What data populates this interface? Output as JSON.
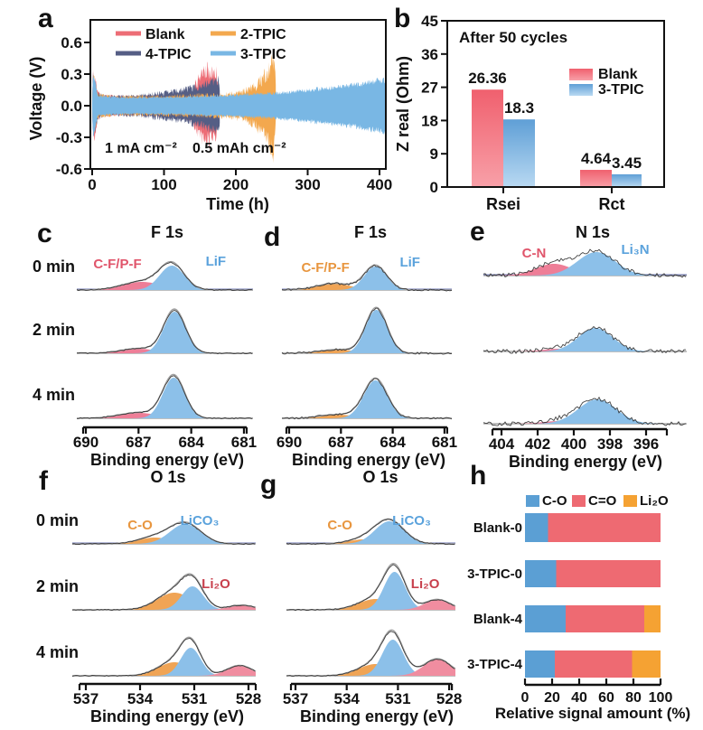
{
  "colors": {
    "blank_red": "#ed6d76",
    "tpic2_orange": "#f3a84e",
    "tpic4_navy": "#555e85",
    "tpic3_blue": "#79b7e4",
    "bar_red_top": "#f0606e",
    "bar_red_bot": "#f8a0a8",
    "bar_blue_top": "#5f9fd6",
    "bar_blue_bot": "#b9d9f2",
    "xps_blue": "#8cc0e9",
    "xps_red": "#ee7e97",
    "xps_orange": "#f0a455",
    "xps_pink": "#f08da0",
    "envelope_gray": "#a2a2a2",
    "baseline_gray": "#9b9b9b",
    "fit_navy": "#5560a8",
    "noise_black": "#2e2e2e",
    "h_blue": "#5b9fd4",
    "h_red": "#ee6a72",
    "h_orange": "#f5a233",
    "label_red": "#e0556b",
    "label_blue": "#5aa2dc",
    "label_orange": "#e8963f",
    "label_dark_red": "#c8404d",
    "text": "#111111"
  },
  "chart_data": [
    {
      "panel": "a",
      "type": "line",
      "xlabel": "Time (h)",
      "ylabel": "Voltage (V)",
      "xticks": [
        "0",
        "100",
        "200",
        "300",
        "400"
      ],
      "yticks": [
        "0.6",
        "0.3",
        "0.0",
        "-0.3",
        "-0.6"
      ],
      "xlim": [
        0,
        410
      ],
      "ylim": [
        -0.6,
        0.8
      ],
      "annotations": [
        "1 mA cm⁻²",
        "0.5 mAh cm⁻²"
      ],
      "legend": [
        {
          "label": "Blank",
          "color_key": "blank_red"
        },
        {
          "label": "2-TPIC",
          "color_key": "tpic2_orange"
        },
        {
          "label": "4-TPIC",
          "color_key": "tpic4_navy"
        },
        {
          "label": "3-TPIC",
          "color_key": "tpic3_blue"
        }
      ],
      "series": [
        {
          "name": "Blank",
          "color_key": "blank_red",
          "jitter": 0.55,
          "envelope": [
            [
              0,
              0.02
            ],
            [
              1,
              0.3
            ],
            [
              4,
              0.26
            ],
            [
              8,
              0.12
            ],
            [
              15,
              0.085
            ],
            [
              60,
              0.08
            ],
            [
              100,
              0.09
            ],
            [
              125,
              0.1
            ],
            [
              138,
              0.13
            ],
            [
              146,
              0.22
            ],
            [
              152,
              0.3
            ],
            [
              158,
              0.34
            ],
            [
              164,
              0.33
            ],
            [
              169,
              0.27
            ],
            [
              173,
              0.32
            ],
            [
              175,
              0.18
            ]
          ]
        },
        {
          "name": "2-TPIC",
          "color_key": "tpic2_orange",
          "jitter": 0.55,
          "envelope": [
            [
              0,
              0.02
            ],
            [
              1,
              0.26
            ],
            [
              4,
              0.2
            ],
            [
              8,
              0.1
            ],
            [
              30,
              0.08
            ],
            [
              100,
              0.085
            ],
            [
              150,
              0.095
            ],
            [
              185,
              0.1
            ],
            [
              205,
              0.12
            ],
            [
              218,
              0.15
            ],
            [
              228,
              0.19
            ],
            [
              238,
              0.26
            ],
            [
              245,
              0.32
            ],
            [
              250,
              0.4
            ],
            [
              253,
              0.44
            ],
            [
              255,
              0.28
            ],
            [
              256,
              0.1
            ]
          ]
        },
        {
          "name": "4-TPIC",
          "color_key": "tpic4_navy",
          "jitter": 0.45,
          "envelope": [
            [
              0,
              0.02
            ],
            [
              1,
              0.28
            ],
            [
              4,
              0.22
            ],
            [
              8,
              0.11
            ],
            [
              20,
              0.085
            ],
            [
              60,
              0.09
            ],
            [
              100,
              0.12
            ],
            [
              130,
              0.15
            ],
            [
              150,
              0.18
            ],
            [
              165,
              0.22
            ],
            [
              172,
              0.24
            ],
            [
              177,
              0.23
            ],
            [
              178,
              0.08
            ]
          ]
        },
        {
          "name": "3-TPIC",
          "color_key": "tpic3_blue",
          "jitter": 0.28,
          "envelope": [
            [
              0,
              0.02
            ],
            [
              1,
              0.3
            ],
            [
              4,
              0.22
            ],
            [
              8,
              0.09
            ],
            [
              50,
              0.075
            ],
            [
              120,
              0.08
            ],
            [
              200,
              0.1
            ],
            [
              260,
              0.12
            ],
            [
              320,
              0.16
            ],
            [
              370,
              0.2
            ],
            [
              410,
              0.25
            ]
          ]
        }
      ]
    },
    {
      "panel": "b",
      "type": "bar",
      "title": "After 50 cycles",
      "ylabel": "Z real (Ohm)",
      "ylim": [
        0,
        45
      ],
      "yticks": [
        0,
        9,
        18,
        27,
        36,
        45
      ],
      "categories": [
        "Rsei",
        "Rct"
      ],
      "series": [
        {
          "name": "Blank",
          "color_key": "blank_red",
          "values": [
            26.36,
            4.64
          ]
        },
        {
          "name": "3-TPIC",
          "color_key": "tpic3_blue",
          "values": [
            18.3,
            3.45
          ]
        }
      ],
      "value_labels": [
        [
          "26.36",
          "4.64"
        ],
        [
          "18.3",
          "3.45"
        ]
      ]
    },
    {
      "panel": "c",
      "type": "area",
      "title": "F 1s",
      "xlabel": "Binding energy (eV)",
      "xticks": [
        690,
        687,
        684,
        681
      ],
      "row_labels": [
        "0 min",
        "2 min",
        "4 min"
      ],
      "rows": [
        {
          "peaks": [
            {
              "name": "C-F/P-F",
              "center": 686.8,
              "sigma": 1.1,
              "height": 9,
              "color_key": "xps_red"
            },
            {
              "name": "LiF",
              "center": 685.1,
              "sigma": 0.7,
              "height": 27,
              "color_key": "xps_blue"
            }
          ],
          "annotations": [
            {
              "text": "C-F/P-F",
              "color_key": "label_red",
              "ev": 688.2,
              "dy": -24
            },
            {
              "text": "LiF",
              "color_key": "label_blue",
              "ev": 682.6,
              "dy": -27
            }
          ]
        },
        {
          "peaks": [
            {
              "name": "C-F/P-F",
              "center": 687.0,
              "sigma": 1.0,
              "height": 5,
              "color_key": "xps_red"
            },
            {
              "name": "LiF",
              "center": 684.95,
              "sigma": 0.62,
              "height": 46,
              "color_key": "xps_blue"
            }
          ]
        },
        {
          "peaks": [
            {
              "name": "C-F/P-F",
              "center": 687.0,
              "sigma": 1.1,
              "height": 6,
              "color_key": "xps_red"
            },
            {
              "name": "LiF",
              "center": 685.0,
              "sigma": 0.62,
              "height": 45,
              "color_key": "xps_blue"
            }
          ]
        }
      ]
    },
    {
      "panel": "d",
      "type": "area",
      "title": "F 1s",
      "xlabel": "Binding energy (eV)",
      "xticks": [
        690,
        687,
        684,
        681
      ],
      "rows": [
        {
          "peaks": [
            {
              "name": "C-F/P-F",
              "center": 687.4,
              "sigma": 1.0,
              "height": 7,
              "color_key": "xps_orange"
            },
            {
              "name": "LiF",
              "center": 685.0,
              "sigma": 0.65,
              "height": 26,
              "color_key": "xps_blue"
            }
          ],
          "annotations": [
            {
              "text": "C-F/P-F",
              "color_key": "label_orange",
              "ev": 687.9,
              "dy": -20
            },
            {
              "text": "LiF",
              "color_key": "label_blue",
              "ev": 683.0,
              "dy": -26
            }
          ]
        },
        {
          "peaks": [
            {
              "name": "C-F/P-F",
              "center": 687.2,
              "sigma": 1.0,
              "height": 4,
              "color_key": "xps_orange"
            },
            {
              "name": "LiF",
              "center": 684.95,
              "sigma": 0.62,
              "height": 48,
              "color_key": "xps_blue"
            }
          ]
        },
        {
          "peaks": [
            {
              "name": "C-F/P-F",
              "center": 687.2,
              "sigma": 1.0,
              "height": 4,
              "color_key": "xps_orange"
            },
            {
              "name": "LiF",
              "center": 685.0,
              "sigma": 0.68,
              "height": 42,
              "color_key": "xps_blue"
            }
          ]
        }
      ]
    },
    {
      "panel": "e",
      "type": "area",
      "title": "N 1s",
      "xlabel": "Binding energy (eV)",
      "xticks": [
        404,
        402,
        400,
        398,
        396
      ],
      "rows": [
        {
          "peaks": [
            {
              "name": "C-N",
              "center": 401.1,
              "sigma": 1.0,
              "height": 13,
              "color_key": "xps_red"
            },
            {
              "name": "Li3N",
              "center": 398.75,
              "sigma": 1.05,
              "height": 26,
              "color_key": "xps_blue"
            }
          ],
          "annotations": [
            {
              "text": "C-N",
              "color_key": "label_red",
              "ev": 402.2,
              "dy": -20
            },
            {
              "text": "Li₃N",
              "color_key": "label_blue",
              "ev": 396.6,
              "dy": -24
            }
          ]
        },
        {
          "peaks": [
            {
              "name": "C-N",
              "center": 400.8,
              "sigma": 0.9,
              "height": 3,
              "color_key": "xps_red"
            },
            {
              "name": "Li3N",
              "center": 398.8,
              "sigma": 0.95,
              "height": 26,
              "color_key": "xps_blue"
            }
          ]
        },
        {
          "peaks": [
            {
              "name": "C-N",
              "center": 400.8,
              "sigma": 0.9,
              "height": 3,
              "color_key": "xps_red"
            },
            {
              "name": "Li3N",
              "center": 398.7,
              "sigma": 1.05,
              "height": 27,
              "color_key": "xps_blue"
            }
          ]
        }
      ]
    },
    {
      "panel": "f",
      "type": "area",
      "title": "O 1s",
      "xlabel": "Binding energy (eV)",
      "xticks": [
        537,
        534,
        531,
        528
      ],
      "row_labels": [
        "0 min",
        "2 min",
        "4 min"
      ],
      "rows": [
        {
          "peaks": [
            {
              "name": "C-O",
              "center": 533.2,
              "sigma": 0.9,
              "height": 7,
              "color_key": "xps_orange"
            },
            {
              "name": "LiCO3",
              "center": 531.5,
              "sigma": 0.85,
              "height": 22,
              "color_key": "xps_blue"
            }
          ],
          "annotations": [
            {
              "text": "C-O",
              "color_key": "label_orange",
              "ev": 534.0,
              "dy": -16
            },
            {
              "text": "LiCO₃",
              "color_key": "label_blue",
              "ev": 530.7,
              "dy": -21
            }
          ]
        },
        {
          "peaks": [
            {
              "name": "C-O",
              "center": 532.1,
              "sigma": 0.95,
              "height": 19,
              "color_key": "xps_orange"
            },
            {
              "name": "LiCO3",
              "center": 531.1,
              "sigma": 0.6,
              "height": 26,
              "color_key": "xps_blue"
            },
            {
              "name": "Li2O",
              "center": 528.4,
              "sigma": 0.7,
              "height": 5,
              "color_key": "xps_pink"
            }
          ],
          "annotations": [
            {
              "text": "Li₂O",
              "color_key": "label_dark_red",
              "ev": 529.8,
              "dy": -24
            }
          ]
        },
        {
          "peaks": [
            {
              "name": "C-O",
              "center": 532.1,
              "sigma": 0.9,
              "height": 15,
              "color_key": "xps_orange"
            },
            {
              "name": "LiCO3",
              "center": 531.2,
              "sigma": 0.55,
              "height": 31,
              "color_key": "xps_blue"
            },
            {
              "name": "Li2O",
              "center": 528.5,
              "sigma": 0.7,
              "height": 11,
              "color_key": "xps_pink"
            }
          ]
        }
      ]
    },
    {
      "panel": "g",
      "type": "area",
      "title": "O 1s",
      "xlabel": "Binding energy (eV)",
      "xticks": [
        537,
        534,
        531,
        528
      ],
      "rows": [
        {
          "peaks": [
            {
              "name": "C-O",
              "center": 533.0,
              "sigma": 0.9,
              "height": 5,
              "color_key": "xps_orange"
            },
            {
              "name": "LiCO3",
              "center": 531.5,
              "sigma": 0.85,
              "height": 25,
              "color_key": "xps_blue"
            }
          ],
          "annotations": [
            {
              "text": "C-O",
              "color_key": "label_orange",
              "ev": 534.4,
              "dy": -16
            },
            {
              "text": "LiCO₃",
              "color_key": "label_blue",
              "ev": 530.2,
              "dy": -21
            }
          ]
        },
        {
          "peaks": [
            {
              "name": "C-O",
              "center": 532.3,
              "sigma": 1.0,
              "height": 12,
              "color_key": "xps_orange"
            },
            {
              "name": "LiCO3",
              "center": 531.2,
              "sigma": 0.62,
              "height": 42,
              "color_key": "xps_blue"
            },
            {
              "name": "Li2O",
              "center": 528.7,
              "sigma": 0.75,
              "height": 11,
              "color_key": "xps_pink"
            }
          ],
          "annotations": [
            {
              "text": "Li₂O",
              "color_key": "label_dark_red",
              "ev": 529.4,
              "dy": -24
            }
          ]
        },
        {
          "peaks": [
            {
              "name": "C-O",
              "center": 532.3,
              "sigma": 1.0,
              "height": 13,
              "color_key": "xps_orange"
            },
            {
              "name": "LiCO3",
              "center": 531.3,
              "sigma": 0.62,
              "height": 40,
              "color_key": "xps_blue"
            },
            {
              "name": "Li2O",
              "center": 528.7,
              "sigma": 0.8,
              "height": 18,
              "color_key": "xps_pink"
            }
          ]
        }
      ]
    },
    {
      "panel": "h",
      "type": "bar",
      "orientation": "horizontal",
      "stacked": true,
      "xlabel": "Relative signal amount (%)",
      "xticks": [
        0,
        20,
        40,
        60,
        80,
        100
      ],
      "xlim": [
        0,
        100
      ],
      "categories": [
        "Blank-0",
        "3-TPIC-0",
        "Blank-4",
        "3-TPIC-4"
      ],
      "series": [
        {
          "name": "C-O",
          "color_key": "h_blue",
          "values": [
            17,
            23,
            30,
            22
          ]
        },
        {
          "name": "C=O",
          "color_key": "h_red",
          "values": [
            83,
            77,
            58,
            57
          ]
        },
        {
          "name": "Li₂O",
          "color_key": "h_orange",
          "values": [
            0,
            0,
            12,
            21
          ]
        }
      ]
    }
  ]
}
